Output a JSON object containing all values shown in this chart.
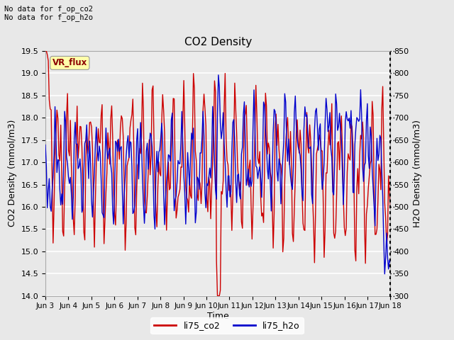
{
  "title": "CO2 Density",
  "xlabel": "Time",
  "ylabel_left": "CO2 Density (mmol/m3)",
  "ylabel_right": "H2O Density (mmol/m3)",
  "top_text_line1": "No data for f_op_co2",
  "top_text_line2": "No data for f_op_h2o",
  "vr_flux_label": "VR_flux",
  "ylim_left": [
    14.0,
    19.5
  ],
  "ylim_right": [
    300,
    850
  ],
  "legend_labels": [
    "li75_co2",
    "li75_h2o"
  ],
  "co2_color": "#cc0000",
  "h2o_color": "#0000cc",
  "x_tick_labels": [
    "Jun 3",
    "Jun 4",
    "Jun 5",
    "Jun 6",
    "Jun 7",
    "Jun 8",
    "Jun 9",
    "Jun 10",
    "Jun 11",
    "Jun 12",
    "Jun 13",
    "Jun 14",
    "Jun 15",
    "Jun 16",
    "Jun 17",
    "Jun 18"
  ],
  "x_tick_positions": [
    0,
    1,
    2,
    3,
    4,
    5,
    6,
    7,
    8,
    9,
    10,
    11,
    12,
    13,
    14,
    15
  ],
  "bg_color": "#e8e8e8",
  "plot_bg": "#ebebeb"
}
